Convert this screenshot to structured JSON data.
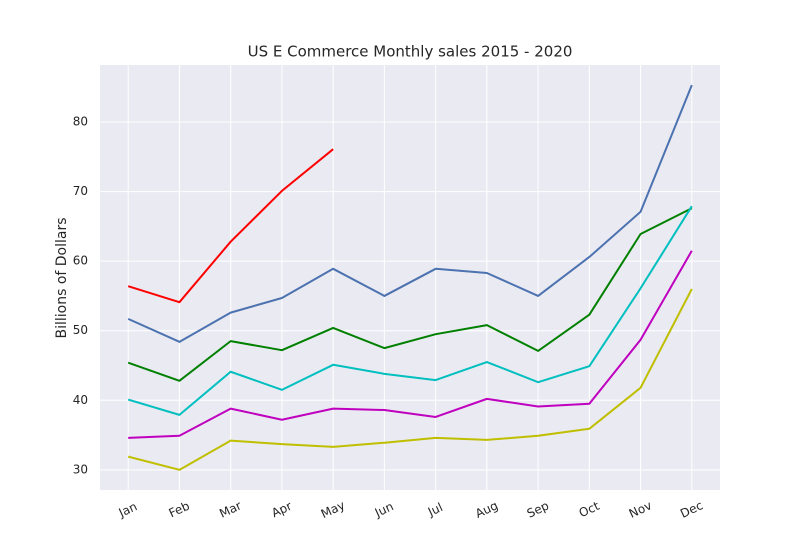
{
  "chart_data": {
    "type": "line",
    "title": "US E Commerce Monthly sales 2015 - 2020",
    "ylabel": "Billions of Dollars",
    "categories": [
      "Jan",
      "Feb",
      "Mar",
      "Apr",
      "May",
      "Jun",
      "Jul",
      "Aug",
      "Sep",
      "Oct",
      "Nov",
      "Dec"
    ],
    "series": [
      {
        "color": "#ff0000",
        "values": [
          56.4,
          54.1,
          62.8,
          70.1,
          76.1,
          null,
          null,
          null,
          null,
          null,
          null,
          null
        ]
      },
      {
        "color": "#4c72b0",
        "values": [
          51.7,
          48.4,
          52.6,
          54.7,
          58.9,
          55.0,
          58.9,
          58.3,
          55.0,
          60.6,
          67.1,
          85.3
        ]
      },
      {
        "color": "#008000",
        "values": [
          45.4,
          42.8,
          48.5,
          47.2,
          50.4,
          47.5,
          49.5,
          50.8,
          47.1,
          52.3,
          63.9,
          67.6
        ]
      },
      {
        "color": "#00bfbf",
        "values": [
          40.1,
          37.9,
          44.1,
          41.5,
          45.1,
          43.8,
          42.9,
          45.5,
          42.6,
          44.9,
          56.1,
          67.9
        ]
      },
      {
        "color": "#bf00bf",
        "values": [
          34.6,
          34.9,
          38.8,
          37.2,
          38.8,
          38.6,
          37.6,
          40.2,
          39.1,
          39.5,
          48.7,
          61.5
        ]
      },
      {
        "color": "#bfbf00",
        "values": [
          31.9,
          30.0,
          34.2,
          33.7,
          33.3,
          33.9,
          34.6,
          34.3,
          34.9,
          35.9,
          41.8,
          56.0
        ]
      }
    ],
    "ylim": [
      27.1,
      88.2
    ],
    "yticks": [
      30,
      40,
      50,
      60,
      70,
      80
    ],
    "grid": true
  }
}
